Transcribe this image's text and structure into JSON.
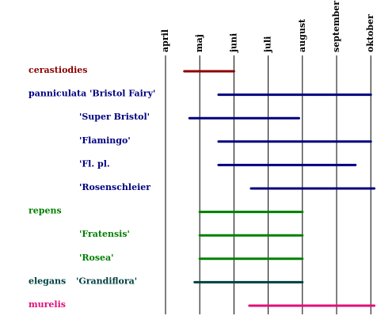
{
  "chart_data": {
    "type": "gantt",
    "title": "",
    "months": [
      "april",
      "maj",
      "juni",
      "juli",
      "august",
      "september",
      "oktober"
    ],
    "grid": true,
    "series": [
      {
        "name": "cerastiodies",
        "indent": 0,
        "color": "#8B0000",
        "start": 4.55,
        "end": 6.0
      },
      {
        "name": "panniculata 'Bristol Fairy'",
        "indent": 0,
        "color": "#000080",
        "start": 5.55,
        "end": 10.0
      },
      {
        "name": "'Super Bristol'",
        "indent": 1,
        "color": "#000080",
        "start": 4.7,
        "end": 7.9
      },
      {
        "name": "'Flamingo'",
        "indent": 1,
        "color": "#000080",
        "start": 5.55,
        "end": 10.0
      },
      {
        "name": "'Fl. pl.",
        "indent": 1,
        "color": "#000080",
        "start": 5.55,
        "end": 9.55
      },
      {
        "name": "'Rosenschleier",
        "indent": 1,
        "color": "#000080",
        "start": 6.5,
        "end": 10.1
      },
      {
        "name": "repens",
        "indent": 0,
        "color": "#008000",
        "start": 5.0,
        "end": 8.0
      },
      {
        "name": "'Fratensis'",
        "indent": 1,
        "color": "#008000",
        "start": 5.0,
        "end": 8.0
      },
      {
        "name": "'Rosea'",
        "indent": 1,
        "color": "#008000",
        "start": 5.0,
        "end": 8.0
      },
      {
        "name": "elegans",
        "label2": "'Grandiflora'",
        "indent": 0,
        "color": "#004040",
        "start": 4.85,
        "end": 8.0
      },
      {
        "name": "murelis",
        "indent": 0,
        "color": "#E0107A",
        "start": 6.45,
        "end": 10.1
      }
    ]
  }
}
